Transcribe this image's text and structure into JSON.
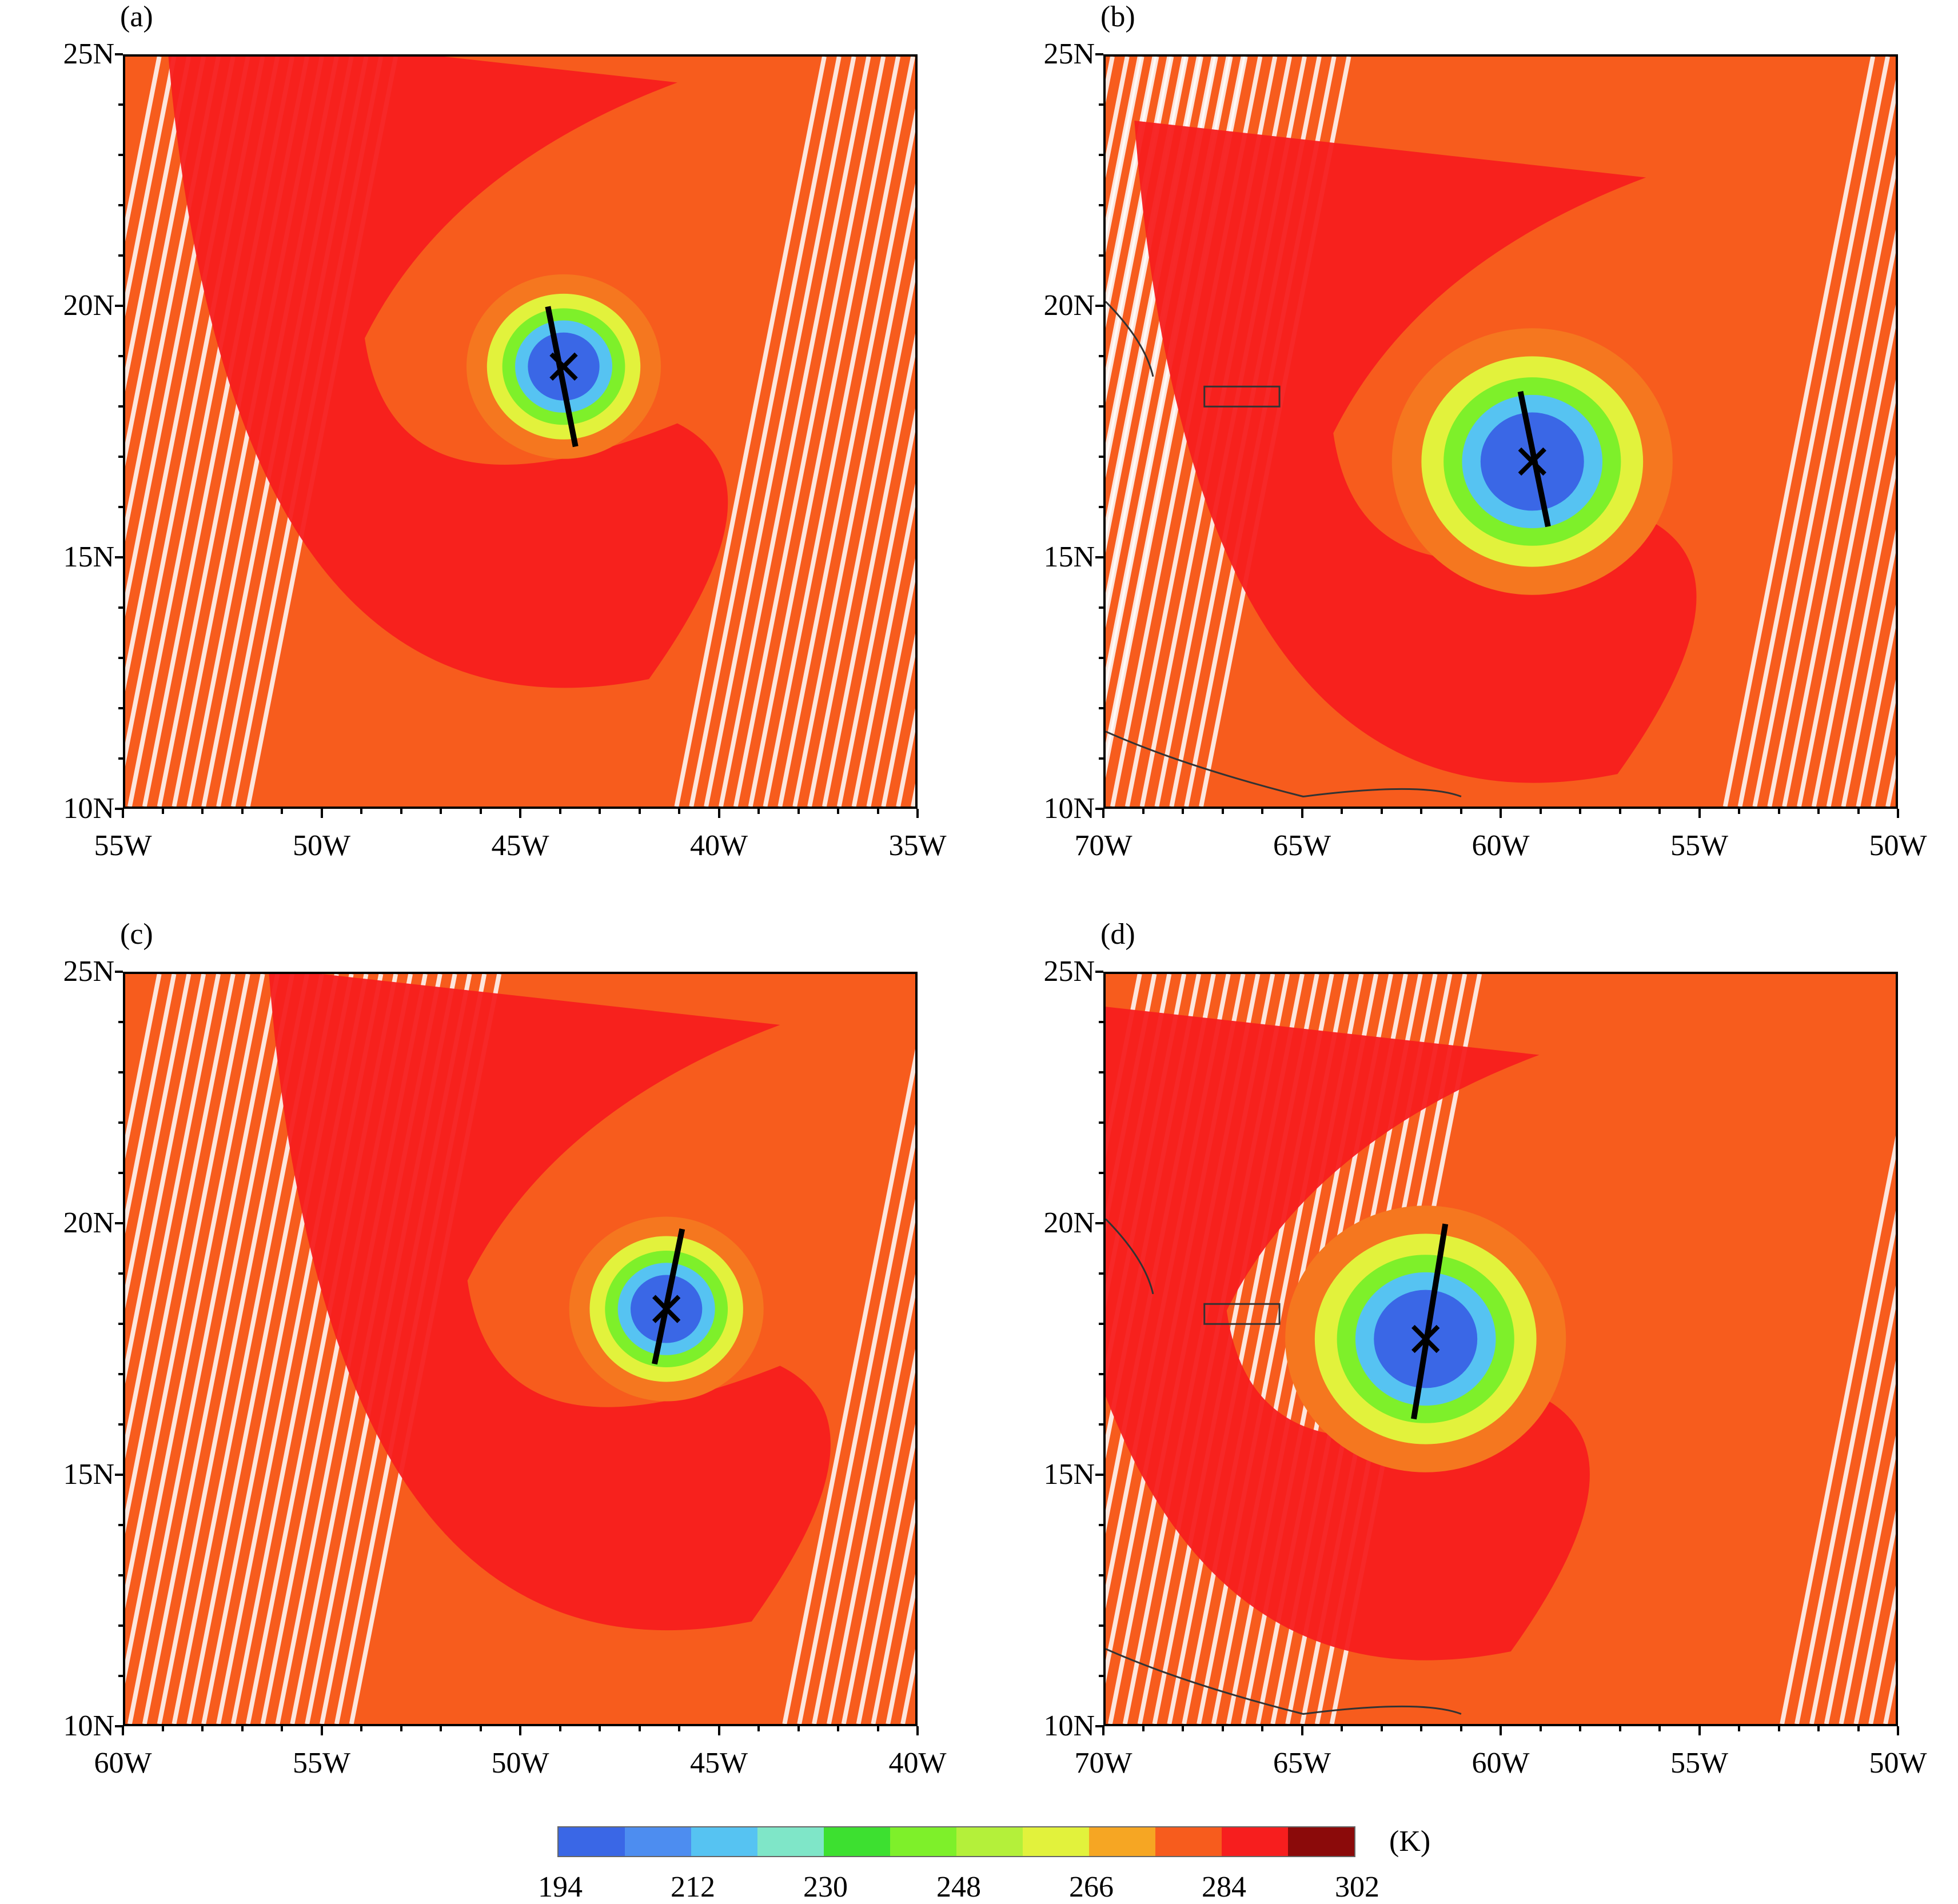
{
  "colorbar": {
    "unit": "(K)",
    "ticks": [
      "194",
      "212",
      "230",
      "248",
      "266",
      "284",
      "302"
    ],
    "colors": [
      "#3a67e6",
      "#4d8df0",
      "#56c3f2",
      "#7fe6c8",
      "#3de030",
      "#7ef02a",
      "#b4f03a",
      "#e2f23c",
      "#f6a623",
      "#f75c1d",
      "#f71e1e",
      "#8b0a0a"
    ]
  },
  "palette": {
    "ocean_warm": "#f75c1d",
    "scan_line": "#f5771f",
    "warm_core": "#f71e1e",
    "eye_cold": "#3a67e6",
    "ring_cyan": "#56c3f2",
    "ring_green": "#7ef02a",
    "ring_yellow": "#e2f23c"
  },
  "panels": [
    {
      "label": "(a)",
      "y_ticks": [
        "25N",
        "20N",
        "15N",
        "10N"
      ],
      "x_ticks": [
        "55W",
        "50W",
        "45W",
        "40W",
        "35W"
      ],
      "lon_range": [
        -55,
        -35
      ],
      "lat_range": [
        10,
        25
      ],
      "center": {
        "lon": -43.9,
        "lat": 18.8
      },
      "track": {
        "from": {
          "lon": -44.3,
          "lat": 20.0
        },
        "to": {
          "lon": -43.6,
          "lat": 17.2
        }
      },
      "coastline": false
    },
    {
      "label": "(b)",
      "y_ticks": [
        "25N",
        "20N",
        "15N",
        "10N"
      ],
      "x_ticks": [
        "70W",
        "65W",
        "60W",
        "55W",
        "50W"
      ],
      "lon_range": [
        -70,
        -50
      ],
      "lat_range": [
        10,
        25
      ],
      "center": {
        "lon": -59.2,
        "lat": 16.9
      },
      "track": {
        "from": {
          "lon": -59.5,
          "lat": 18.3
        },
        "to": {
          "lon": -58.8,
          "lat": 15.6
        }
      },
      "coastline": true
    },
    {
      "label": "(c)",
      "y_ticks": [
        "25N",
        "20N",
        "15N",
        "10N"
      ],
      "x_ticks": [
        "60W",
        "55W",
        "50W",
        "45W",
        "40W"
      ],
      "lon_range": [
        -60,
        -40
      ],
      "lat_range": [
        10,
        25
      ],
      "center": {
        "lon": -46.3,
        "lat": 18.3
      },
      "track": {
        "from": {
          "lon": -45.9,
          "lat": 19.9
        },
        "to": {
          "lon": -46.6,
          "lat": 17.2
        }
      },
      "coastline": false
    },
    {
      "label": "(d)",
      "y_ticks": [
        "25N",
        "20N",
        "15N",
        "10N"
      ],
      "x_ticks": [
        "70W",
        "65W",
        "60W",
        "55W",
        "50W"
      ],
      "lon_range": [
        -70,
        -50
      ],
      "lat_range": [
        10,
        25
      ],
      "center": {
        "lon": -61.9,
        "lat": 17.7
      },
      "track": {
        "from": {
          "lon": -61.4,
          "lat": 20.0
        },
        "to": {
          "lon": -62.2,
          "lat": 16.1
        }
      },
      "coastline": true
    }
  ]
}
